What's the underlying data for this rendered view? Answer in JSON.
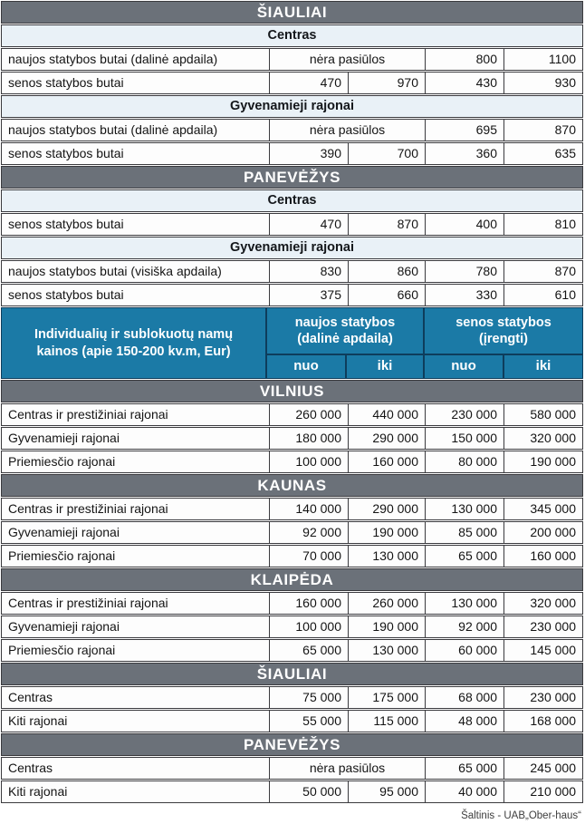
{
  "colors": {
    "city_band_bg": "#6b7179",
    "area_band_bg": "#e9f1f7",
    "blue_header_bg": "#1b7aa6",
    "blue_header_border": "#0e3d5c",
    "row_border": "#3a3a3e",
    "city_band_text": "#ffffff",
    "body_text": "#141414"
  },
  "apartments": {
    "blocks": [
      {
        "type": "city",
        "label": "ŠIAULIAI"
      },
      {
        "type": "area",
        "label": "Centras"
      },
      {
        "type": "row_span",
        "label": "naujos statybos butai (dalinė apdaila)",
        "span": "nėra pasiūlos",
        "v3": "800",
        "v4": "1100"
      },
      {
        "type": "row",
        "label": "senos statybos butai",
        "v1": "470",
        "v2": "970",
        "v3": "430",
        "v4": "930"
      },
      {
        "type": "area",
        "label": "Gyvenamieji rajonai"
      },
      {
        "type": "row_span",
        "label": "naujos statybos butai (dalinė apdaila)",
        "span": "nėra pasiūlos",
        "v3": "695",
        "v4": "870"
      },
      {
        "type": "row",
        "label": "senos statybos butai",
        "v1": "390",
        "v2": "700",
        "v3": "360",
        "v4": "635"
      },
      {
        "type": "city",
        "label": "PANEVĖŽYS"
      },
      {
        "type": "area",
        "label": "Centras"
      },
      {
        "type": "row",
        "label": "senos statybos butai",
        "v1": "470",
        "v2": "870",
        "v3": "400",
        "v4": "810"
      },
      {
        "type": "area",
        "label": "Gyvenamieji rajonai"
      },
      {
        "type": "row",
        "label": "naujos statybos butai (visiška apdaila)",
        "v1": "830",
        "v2": "860",
        "v3": "780",
        "v4": "870"
      },
      {
        "type": "row",
        "label": "senos statybos butai",
        "v1": "375",
        "v2": "660",
        "v3": "330",
        "v4": "610"
      }
    ]
  },
  "houses_header": {
    "title": "Individualių ir sublokuotų namų kainos (apie 150-200 kv.m, Eur)",
    "group1": "naujos statybos (dalinė apdaila)",
    "group2": "senos statybos (įrengti)",
    "sub": [
      "nuo",
      "iki",
      "nuo",
      "iki"
    ]
  },
  "houses": {
    "blocks": [
      {
        "type": "city",
        "label": "VILNIUS"
      },
      {
        "type": "row",
        "label": "Centras ir prestižiniai rajonai",
        "v1": "260 000",
        "v2": "440 000",
        "v3": "230 000",
        "v4": "580 000"
      },
      {
        "type": "row",
        "label": "Gyvenamieji rajonai",
        "v1": "180 000",
        "v2": "290 000",
        "v3": "150 000",
        "v4": "320 000"
      },
      {
        "type": "row",
        "label": "Priemiesčio rajonai",
        "v1": "100 000",
        "v2": "160 000",
        "v3": "80 000",
        "v4": "190 000"
      },
      {
        "type": "city",
        "label": "KAUNAS"
      },
      {
        "type": "row",
        "label": "Centras ir prestižiniai rajonai",
        "v1": "140 000",
        "v2": "290 000",
        "v3": "130 000",
        "v4": "345 000"
      },
      {
        "type": "row",
        "label": "Gyvenamieji rajonai",
        "v1": "92 000",
        "v2": "190 000",
        "v3": "85 000",
        "v4": "200 000"
      },
      {
        "type": "row",
        "label": "Priemiesčio rajonai",
        "v1": "70 000",
        "v2": "130 000",
        "v3": "65 000",
        "v4": "160 000"
      },
      {
        "type": "city",
        "label": "KLAIPĖDA"
      },
      {
        "type": "row",
        "label": "Centras ir prestižiniai rajonai",
        "v1": "160 000",
        "v2": "260 000",
        "v3": "130 000",
        "v4": "320 000"
      },
      {
        "type": "row",
        "label": "Gyvenamieji rajonai",
        "v1": "100 000",
        "v2": "190 000",
        "v3": "92 000",
        "v4": "230 000"
      },
      {
        "type": "row",
        "label": "Priemiesčio rajonai",
        "v1": "65 000",
        "v2": "130 000",
        "v3": "60 000",
        "v4": "145 000"
      },
      {
        "type": "city",
        "label": "ŠIAULIAI"
      },
      {
        "type": "row",
        "label": "Centras",
        "v1": "75 000",
        "v2": "175 000",
        "v3": "68 000",
        "v4": "230 000"
      },
      {
        "type": "row",
        "label": "Kiti rajonai",
        "v1": "55 000",
        "v2": "115 000",
        "v3": "48 000",
        "v4": "168 000"
      },
      {
        "type": "city",
        "label": "PANEVĖŽYS"
      },
      {
        "type": "row_span",
        "label": "Centras",
        "span": "nėra pasiūlos",
        "v3": "65 000",
        "v4": "245 000"
      },
      {
        "type": "row",
        "label": "Kiti rajonai",
        "v1": "50 000",
        "v2": "95 000",
        "v3": "40 000",
        "v4": "210 000"
      }
    ]
  },
  "footer": {
    "source": "Šaltinis - UAB„Ober-haus“"
  }
}
